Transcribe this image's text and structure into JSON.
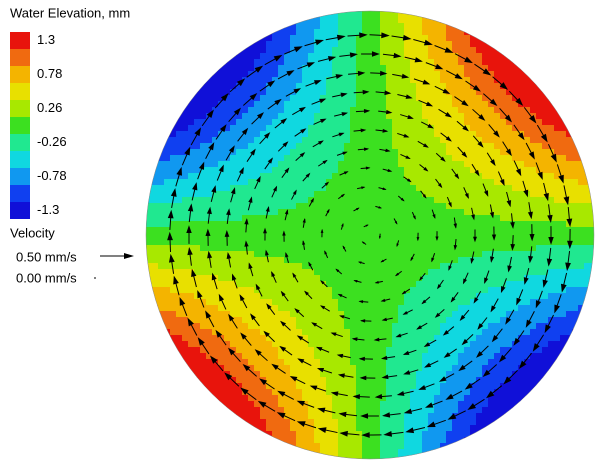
{
  "legend": {
    "title": "Water Elevation, mm",
    "colors": [
      "#e8140c",
      "#f06a10",
      "#f4b400",
      "#e8e000",
      "#a8e800",
      "#3ce020",
      "#20e890",
      "#10d8e0",
      "#1098f0",
      "#1040f0",
      "#1010d8"
    ],
    "labels": [
      "1.3",
      "0.78",
      "0.26",
      "-0.26",
      "-0.78",
      "-1.3"
    ]
  },
  "velocity": {
    "title": "Velocity",
    "entries": [
      "0.50 mm/s",
      "0.00 mm/s"
    ]
  }
}
